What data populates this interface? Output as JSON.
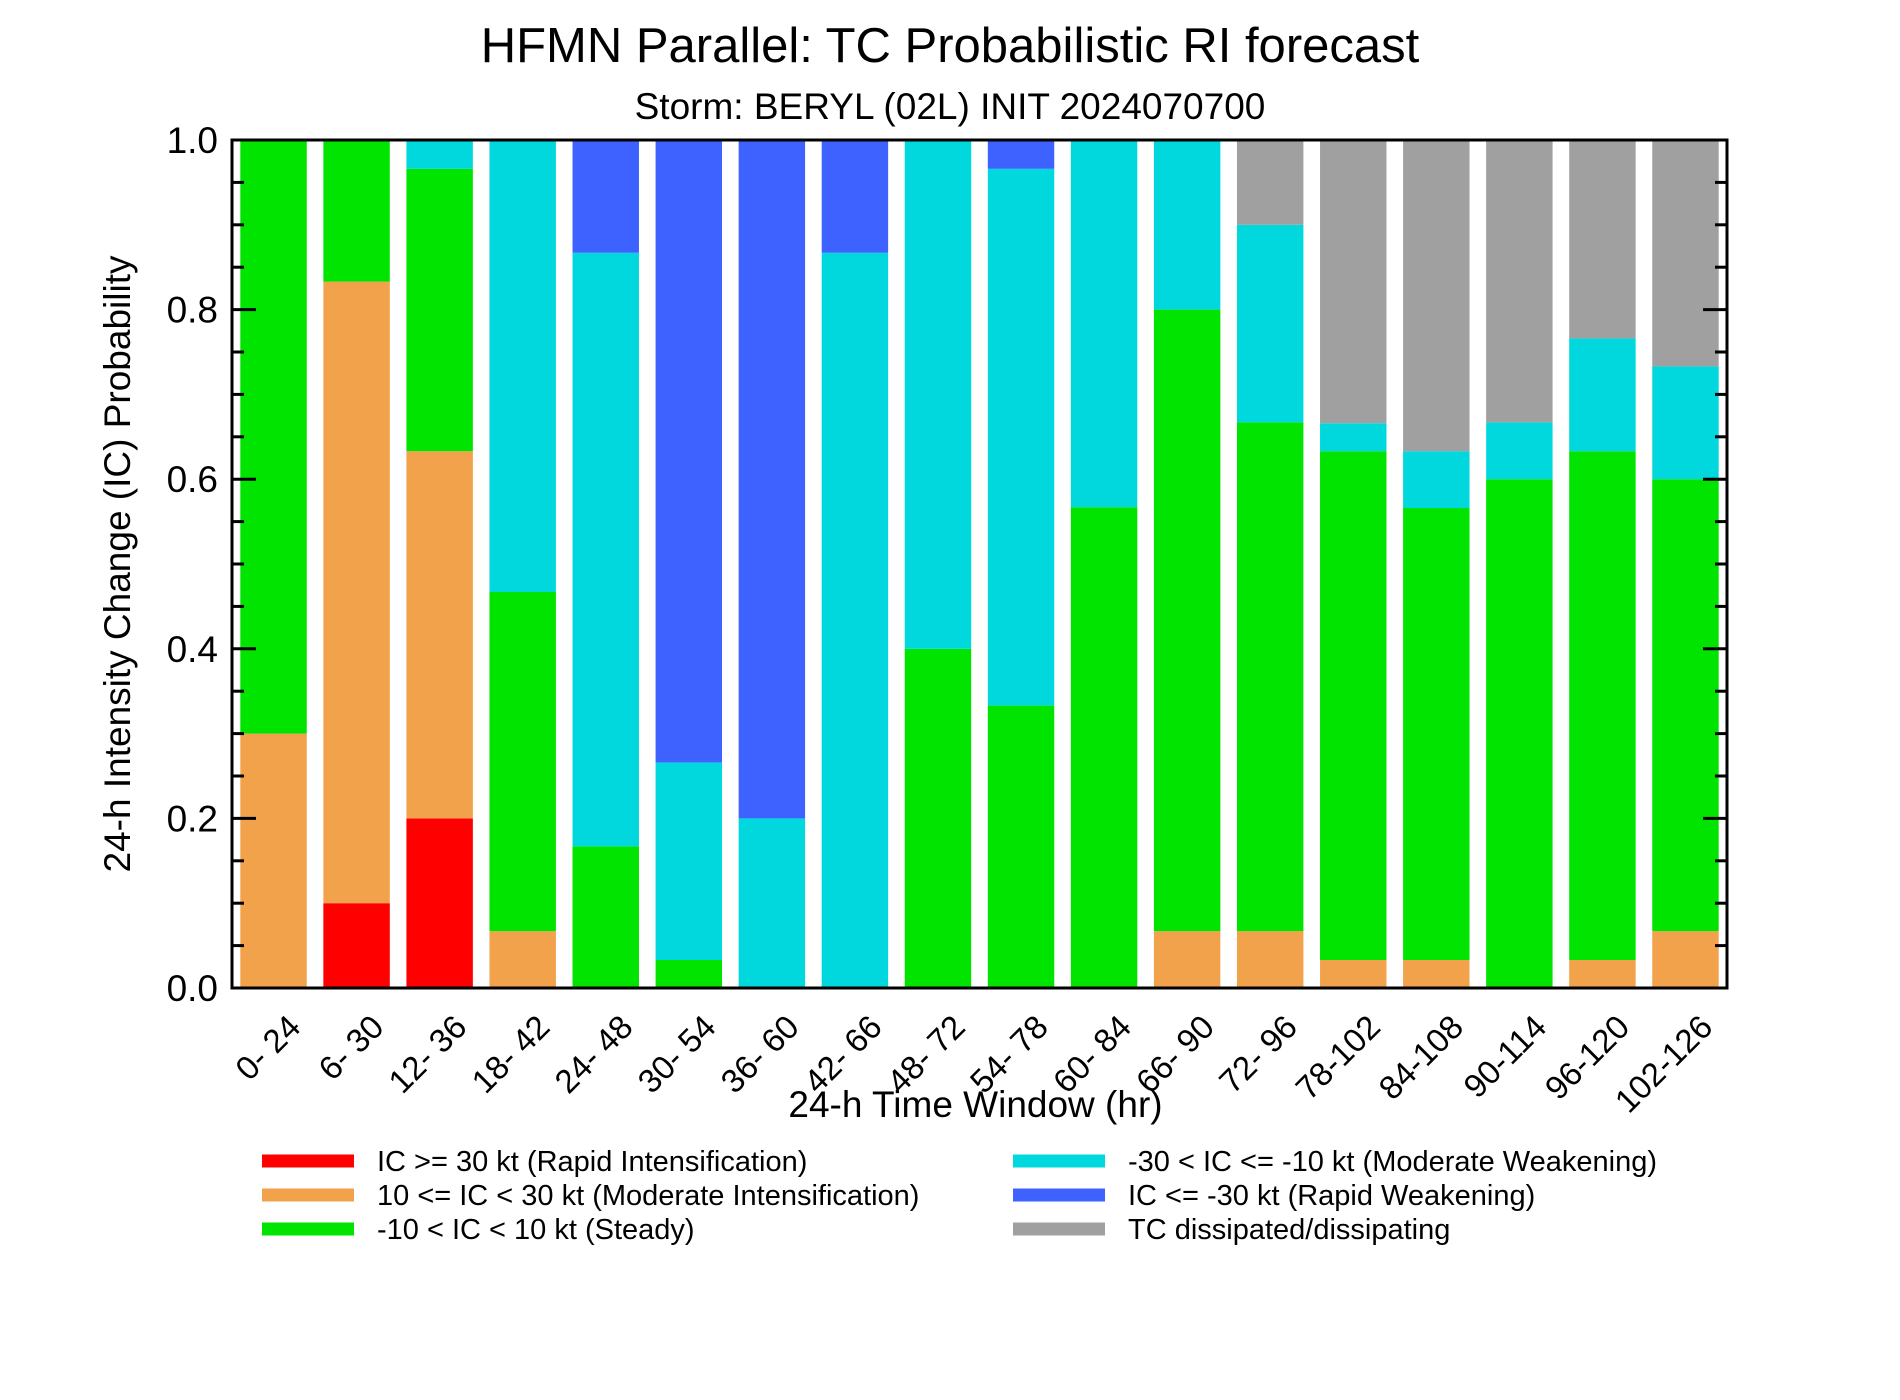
{
  "chart_data": {
    "type": "bar",
    "stacked": true,
    "title": "HFMN Parallel: TC Probabilistic RI forecast",
    "subtitle": "Storm: BERYL (02L) INIT 2024070700",
    "xlabel": "24-h Time Window (hr)",
    "ylabel": "24-h Intensity Change (IC) Probability",
    "ylim": [
      0,
      1
    ],
    "yticks": [
      "0.0",
      "0.2",
      "0.4",
      "0.6",
      "0.8",
      "1.0"
    ],
    "ytick_values": [
      0,
      0.2,
      0.4,
      0.6,
      0.8,
      1.0
    ],
    "legend_position": "bottom",
    "categories": [
      "0- 24",
      "6- 30",
      "12- 36",
      "18- 42",
      "24- 48",
      "30- 54",
      "36- 60",
      "42- 66",
      "48- 72",
      "54- 78",
      "60- 84",
      "66- 90",
      "72- 96",
      "78-102",
      "84-108",
      "90-114",
      "96-120",
      "102-126"
    ],
    "series": [
      {
        "name": "IC >= 30 kt (Rapid Intensification)",
        "color": "#ff0000",
        "values": [
          0,
          0.1,
          0.2,
          0,
          0,
          0,
          0,
          0,
          0,
          0,
          0,
          0,
          0,
          0,
          0,
          0,
          0,
          0
        ]
      },
      {
        "name": "10 <= IC < 30 kt (Moderate Intensification)",
        "color": "#f2a24b",
        "values": [
          0.3,
          0.733,
          0.433,
          0.067,
          0,
          0,
          0,
          0,
          0,
          0,
          0,
          0.067,
          0.067,
          0.033,
          0.033,
          0,
          0.033,
          0.067
        ]
      },
      {
        "name": "-10 < IC < 10 kt (Steady)",
        "color": "#00e400",
        "values": [
          0.7,
          0.167,
          0.333,
          0.4,
          0.167,
          0.033,
          0,
          0,
          0.4,
          0.333,
          0.567,
          0.733,
          0.6,
          0.6,
          0.533,
          0.6,
          0.6,
          0.533
        ]
      },
      {
        "name": "-30 < IC <= -10 kt (Moderate Weakening)",
        "color": "#00d8de",
        "values": [
          0,
          0,
          0.033,
          0.533,
          0.7,
          0.233,
          0.2,
          0.867,
          0.6,
          0.633,
          0.433,
          0.2,
          0.233,
          0.033,
          0.067,
          0.067,
          0.133,
          0.133
        ]
      },
      {
        "name": "IC <= -30 kt (Rapid Weakening)",
        "color": "#3d62ff",
        "values": [
          0,
          0,
          0,
          0,
          0.133,
          0.733,
          0.8,
          0.133,
          0,
          0.033,
          0,
          0,
          0,
          0,
          0,
          0,
          0,
          0
        ]
      },
      {
        "name": "TC dissipated/dissipating",
        "color": "#a0a0a0",
        "values": [
          0,
          0,
          0,
          0,
          0,
          0,
          0,
          0,
          0,
          0,
          0,
          0,
          0.1,
          0.333,
          0.367,
          0.333,
          0.233,
          0.267
        ]
      }
    ]
  }
}
